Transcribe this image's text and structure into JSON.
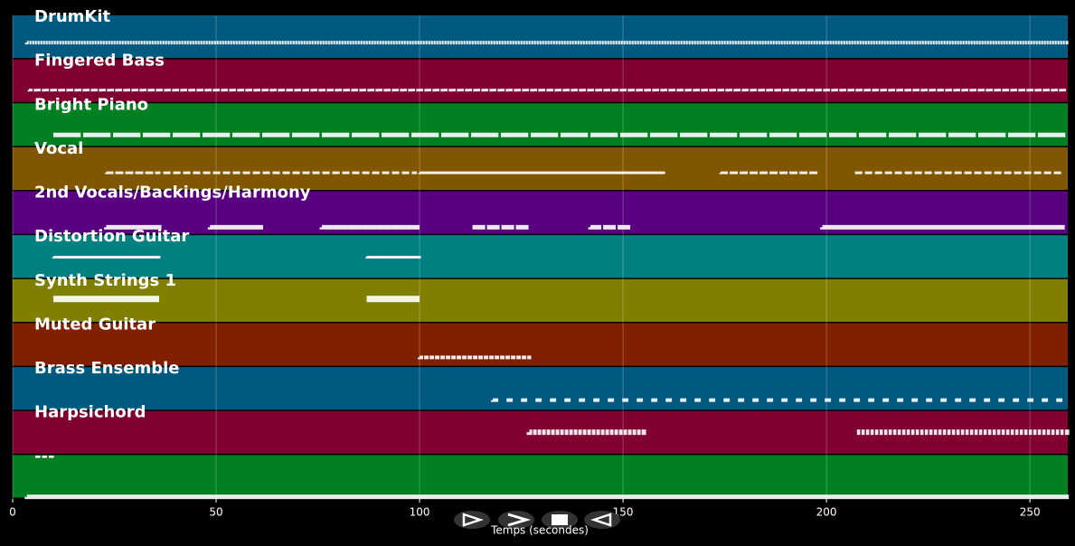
{
  "chart_data": {
    "type": "piano-roll",
    "xlabel": "Temps (secondes)",
    "xlim": [
      0,
      259.3
    ],
    "xticks": [
      0,
      50,
      100,
      150,
      200,
      250
    ],
    "grid": true,
    "tracks": [
      {
        "name": "DrumKit",
        "color": "#005a80",
        "segments": [
          [
            3.5,
            259
          ]
        ]
      },
      {
        "name": "Fingered Bass",
        "color": "#800030",
        "segments": [
          [
            4,
            259
          ]
        ]
      },
      {
        "name": "Bright Piano",
        "color": "#008020",
        "segments": [
          [
            10,
            259
          ]
        ]
      },
      {
        "name": "Vocal",
        "color": "#805700",
        "segments": [
          [
            23,
            36
          ],
          [
            37,
            99
          ],
          [
            100,
            160
          ],
          [
            174,
            198
          ],
          [
            207,
            258
          ]
        ]
      },
      {
        "name": "2nd Vocals/Backings/Harmony",
        "color": "#580080",
        "segments": [
          [
            23,
            36
          ],
          [
            48.5,
            61
          ],
          [
            76,
            100
          ],
          [
            113,
            127
          ],
          [
            142,
            152
          ],
          [
            199,
            258
          ]
        ]
      },
      {
        "name": "Distortion Guitar",
        "color": "#008080",
        "segments": [
          [
            10,
            36
          ],
          [
            87,
            100
          ]
        ]
      },
      {
        "name": "Synth Strings 1",
        "color": "#808000",
        "segments": [
          [
            10,
            36
          ],
          [
            87,
            100
          ]
        ]
      },
      {
        "name": "Muted Guitar",
        "color": "#802000",
        "segments": [
          [
            100,
            127
          ]
        ]
      },
      {
        "name": "Brass Ensemble",
        "color": "#005a80",
        "segments": [
          [
            118,
            259
          ]
        ]
      },
      {
        "name": "Harpsichord",
        "color": "#800030",
        "segments": [
          [
            127,
            155
          ],
          [
            207.5,
            259
          ]
        ]
      },
      {
        "name": "---",
        "color": "#008020",
        "segments": [
          [
            3.5,
            259
          ]
        ]
      }
    ]
  }
}
